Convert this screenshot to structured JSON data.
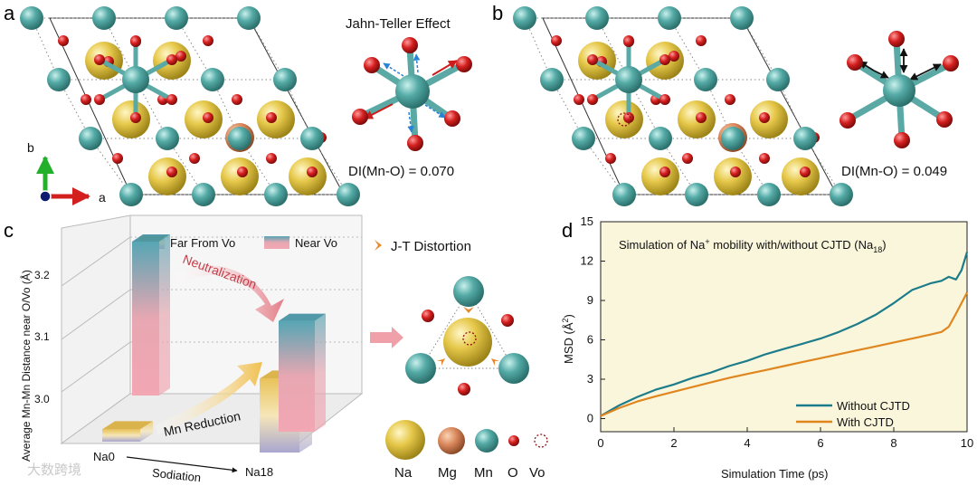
{
  "panel_a": {
    "label": "a",
    "title": "Jahn-Teller Effect",
    "di_text": "DI(Mn-O) = 0.070",
    "axis_b": "b",
    "axis_a": "a"
  },
  "panel_b": {
    "label": "b",
    "di_text": "DI(Mn-O) = 0.049"
  },
  "panel_c": {
    "label": "c",
    "legend_far": "Far From Vo",
    "legend_near": "Near Vo",
    "jt_title": "J-T Distortion",
    "arrow_top_label": "Neutralization",
    "arrow_bottom_label": "Mn Reduction",
    "x_categories": [
      "Na0",
      "Na18"
    ],
    "x_axis_label": "Sodiation",
    "atom_legend": [
      "Na",
      "Mg",
      "Mn",
      "O",
      "Vo"
    ]
  },
  "panel_d": {
    "label": "d",
    "title_main": "Simulation of Na",
    "title_sup": "+",
    "title_mid": " mobility with/without CJTD (Na",
    "title_sub": "18",
    "title_end": ")"
  },
  "watermark": "大数跨境",
  "colors": {
    "Na": "#e3c642",
    "Mg": "#d9865a",
    "Mn": "#54aaa6",
    "O": "#d41f1f",
    "without_cjtd": "#1d7c8a",
    "with_cjtd": "#e0861f",
    "plot_bg": "#faf6dc",
    "arrow": "#e4909a"
  },
  "chart_data": [
    {
      "type": "bar",
      "title": "",
      "ylabel": "Average Mn-Mn Distance near O/Vo (Å)",
      "xlabel": "Sodiation",
      "categories": [
        "Na0",
        "Na18"
      ],
      "series": [
        {
          "name": "Far From Vo",
          "values": [
            2.97,
            3.07
          ]
        },
        {
          "name": "Near Vo",
          "values": [
            3.2,
            3.13
          ]
        }
      ],
      "ylim": [
        2.9,
        3.25
      ],
      "yticks": [
        3.0,
        3.1,
        3.2
      ]
    },
    {
      "type": "line",
      "title": "Simulation of Na+ mobility with/without CJTD (Na18)",
      "xlabel": "Simulation Time (ps)",
      "ylabel": "MSD (Å2)",
      "xlim": [
        0,
        10
      ],
      "ylim": [
        -1,
        15
      ],
      "xticks": [
        0,
        2,
        4,
        6,
        8,
        10
      ],
      "yticks": [
        0,
        3,
        6,
        9,
        12,
        15
      ],
      "legend_position": "bottom-right",
      "series": [
        {
          "name": "Without CJTD",
          "x": [
            0,
            0.5,
            1,
            1.5,
            2,
            2.5,
            3,
            3.5,
            4,
            4.5,
            5,
            5.5,
            6,
            6.5,
            7,
            7.5,
            8,
            8.5,
            9,
            9.3,
            9.5,
            9.7,
            9.85,
            10
          ],
          "y": [
            0.2,
            1.0,
            1.65,
            2.2,
            2.6,
            3.1,
            3.5,
            4.0,
            4.4,
            4.9,
            5.3,
            5.7,
            6.1,
            6.6,
            7.2,
            7.9,
            8.8,
            9.8,
            10.3,
            10.5,
            10.8,
            10.6,
            11.3,
            12.7
          ]
        },
        {
          "name": "With CJTD",
          "x": [
            0,
            0.5,
            1,
            1.5,
            2,
            2.5,
            3,
            3.5,
            4,
            4.5,
            5,
            5.5,
            6,
            6.5,
            7,
            7.5,
            8,
            8.5,
            9,
            9.3,
            9.5,
            9.7,
            9.85,
            10
          ],
          "y": [
            0.2,
            0.8,
            1.3,
            1.7,
            2.05,
            2.4,
            2.75,
            3.1,
            3.4,
            3.7,
            4.0,
            4.3,
            4.6,
            4.9,
            5.2,
            5.5,
            5.8,
            6.1,
            6.4,
            6.6,
            7.0,
            8.0,
            8.8,
            9.6
          ]
        }
      ]
    }
  ]
}
